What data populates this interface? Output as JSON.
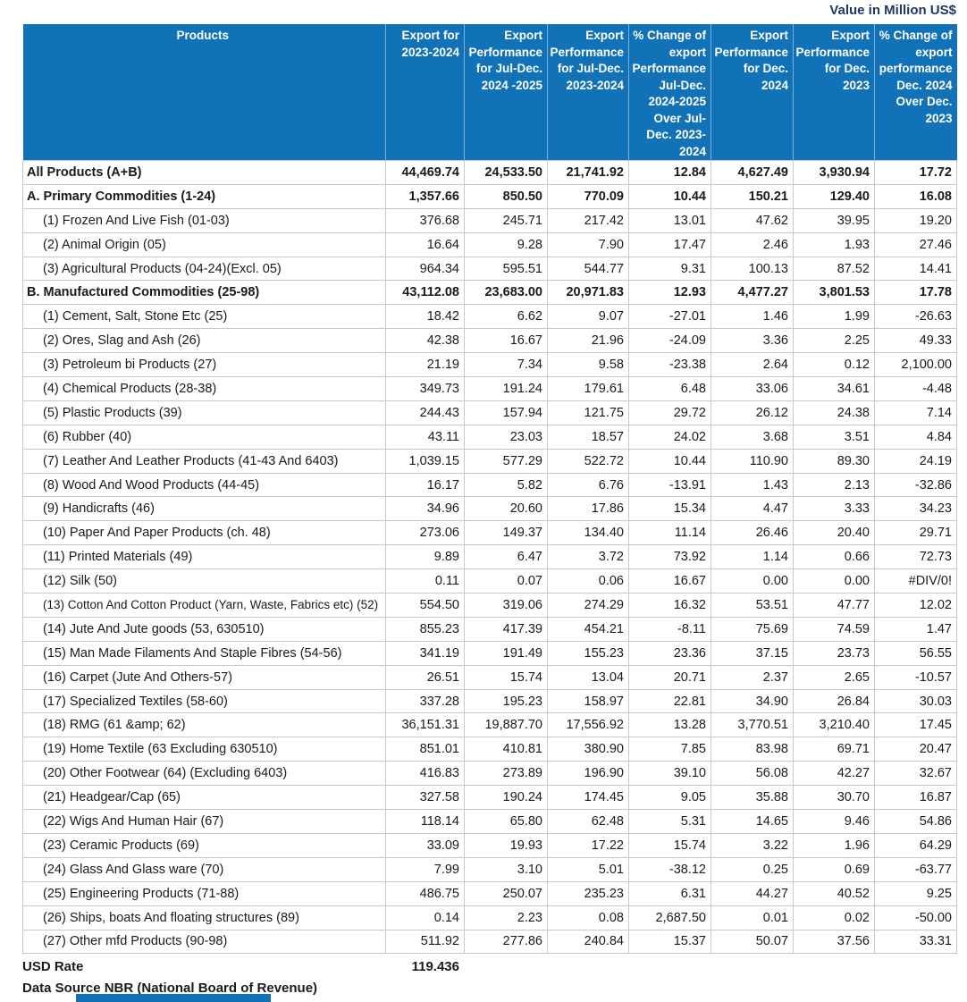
{
  "title": "Value in Million US$",
  "colors": {
    "header_bg": "#1272B8",
    "header_text": "#FFFFFF",
    "title_text": "#1F3864",
    "grid_line": "#C9C9C9",
    "header_divider": "#7FAFD4"
  },
  "chart_data": {
    "type": "table",
    "title": "Value in Million US$",
    "columns": [
      "Products",
      "Export for 2023-2024",
      "Export Performance for Jul-Dec. 2024 -2025",
      "Export Performance for Jul-Dec. 2023-2024",
      "% Change of export Performance Jul-Dec. 2024-2025 Over Jul-Dec. 2023-2024",
      "Export Performance for Dec. 2024",
      "Export Performance for Dec. 2023",
      "% Change of export performance Dec. 2024 Over Dec. 2023"
    ],
    "rows": [
      {
        "product": "All Products (A+B)",
        "values": [
          "44,469.74",
          "24,533.50",
          "21,741.92",
          "12.84",
          "4,627.49",
          "3,930.94",
          "17.72"
        ],
        "bold": true,
        "indent": false
      },
      {
        "product": "A. Primary Commodities (1-24)",
        "values": [
          "1,357.66",
          "850.50",
          "770.09",
          "10.44",
          "150.21",
          "129.40",
          "16.08"
        ],
        "bold": true,
        "indent": false
      },
      {
        "product": "(1) Frozen And Live Fish (01-03)",
        "values": [
          "376.68",
          "245.71",
          "217.42",
          "13.01",
          "47.62",
          "39.95",
          "19.20"
        ],
        "bold": false,
        "indent": true
      },
      {
        "product": "(2) Animal Origin (05)",
        "values": [
          "16.64",
          "9.28",
          "7.90",
          "17.47",
          "2.46",
          "1.93",
          "27.46"
        ],
        "bold": false,
        "indent": true
      },
      {
        "product": "(3) Agricultural Products (04-24)(Excl. 05)",
        "values": [
          "964.34",
          "595.51",
          "544.77",
          "9.31",
          "100.13",
          "87.52",
          "14.41"
        ],
        "bold": false,
        "indent": true
      },
      {
        "product": "B. Manufactured Commodities (25-98)",
        "values": [
          "43,112.08",
          "23,683.00",
          "20,971.83",
          "12.93",
          "4,477.27",
          "3,801.53",
          "17.78"
        ],
        "bold": true,
        "indent": false
      },
      {
        "product": "(1) Cement, Salt, Stone Etc (25)",
        "values": [
          "18.42",
          "6.62",
          "9.07",
          "-27.01",
          "1.46",
          "1.99",
          "-26.63"
        ],
        "bold": false,
        "indent": true
      },
      {
        "product": "(2) Ores, Slag and Ash (26)",
        "values": [
          "42.38",
          "16.67",
          "21.96",
          "-24.09",
          "3.36",
          "2.25",
          "49.33"
        ],
        "bold": false,
        "indent": true
      },
      {
        "product": "(3) Petroleum bi Products (27)",
        "values": [
          "21.19",
          "7.34",
          "9.58",
          "-23.38",
          "2.64",
          "0.12",
          "2,100.00"
        ],
        "bold": false,
        "indent": true
      },
      {
        "product": "(4) Chemical Products (28-38)",
        "values": [
          "349.73",
          "191.24",
          "179.61",
          "6.48",
          "33.06",
          "34.61",
          "-4.48"
        ],
        "bold": false,
        "indent": true
      },
      {
        "product": "(5) Plastic Products (39)",
        "values": [
          "244.43",
          "157.94",
          "121.75",
          "29.72",
          "26.12",
          "24.38",
          "7.14"
        ],
        "bold": false,
        "indent": true
      },
      {
        "product": "(6) Rubber (40)",
        "values": [
          "43.11",
          "23.03",
          "18.57",
          "24.02",
          "3.68",
          "3.51",
          "4.84"
        ],
        "bold": false,
        "indent": true
      },
      {
        "product": "(7) Leather And Leather Products (41-43 And 6403)",
        "values": [
          "1,039.15",
          "577.29",
          "522.72",
          "10.44",
          "110.90",
          "89.30",
          "24.19"
        ],
        "bold": false,
        "indent": true
      },
      {
        "product": "(8) Wood And Wood Products (44-45)",
        "values": [
          "16.17",
          "5.82",
          "6.76",
          "-13.91",
          "1.43",
          "2.13",
          "-32.86"
        ],
        "bold": false,
        "indent": true
      },
      {
        "product": "(9) Handicrafts (46)",
        "values": [
          "34.96",
          "20.60",
          "17.86",
          "15.34",
          "4.47",
          "3.33",
          "34.23"
        ],
        "bold": false,
        "indent": true
      },
      {
        "product": "(10) Paper And Paper Products (ch. 48)",
        "values": [
          "273.06",
          "149.37",
          "134.40",
          "11.14",
          "26.46",
          "20.40",
          "29.71"
        ],
        "bold": false,
        "indent": true
      },
      {
        "product": "(11) Printed Materials (49)",
        "values": [
          "9.89",
          "6.47",
          "3.72",
          "73.92",
          "1.14",
          "0.66",
          "72.73"
        ],
        "bold": false,
        "indent": true
      },
      {
        "product": "(12) Silk (50)",
        "values": [
          "0.11",
          "0.07",
          "0.06",
          "16.67",
          "0.00",
          "0.00",
          "#DIV/0!"
        ],
        "bold": false,
        "indent": true
      },
      {
        "product": "(13) Cotton And Cotton Product (Yarn, Waste, Fabrics etc) (52)",
        "values": [
          "554.50",
          "319.06",
          "274.29",
          "16.32",
          "53.51",
          "47.77",
          "12.02"
        ],
        "bold": false,
        "indent": true
      },
      {
        "product": "(14) Jute And Jute goods (53, 630510)",
        "values": [
          "855.23",
          "417.39",
          "454.21",
          "-8.11",
          "75.69",
          "74.59",
          "1.47"
        ],
        "bold": false,
        "indent": true
      },
      {
        "product": "(15) Man Made Filaments And Staple Fibres (54-56)",
        "values": [
          "341.19",
          "191.49",
          "155.23",
          "23.36",
          "37.15",
          "23.73",
          "56.55"
        ],
        "bold": false,
        "indent": true
      },
      {
        "product": "(16) Carpet (Jute And Others-57)",
        "values": [
          "26.51",
          "15.74",
          "13.04",
          "20.71",
          "2.37",
          "2.65",
          "-10.57"
        ],
        "bold": false,
        "indent": true
      },
      {
        "product": "(17) Specialized Textiles (58-60)",
        "values": [
          "337.28",
          "195.23",
          "158.97",
          "22.81",
          "34.90",
          "26.84",
          "30.03"
        ],
        "bold": false,
        "indent": true
      },
      {
        "product": "(18) RMG (61 &amp; 62)",
        "values": [
          "36,151.31",
          "19,887.70",
          "17,556.92",
          "13.28",
          "3,770.51",
          "3,210.40",
          "17.45"
        ],
        "bold": false,
        "indent": true
      },
      {
        "product": "(19) Home Textile (63 Excluding 630510)",
        "values": [
          "851.01",
          "410.81",
          "380.90",
          "7.85",
          "83.98",
          "69.71",
          "20.47"
        ],
        "bold": false,
        "indent": true
      },
      {
        "product": "(20) Other Footwear (64) (Excluding 6403)",
        "values": [
          "416.83",
          "273.89",
          "196.90",
          "39.10",
          "56.08",
          "42.27",
          "32.67"
        ],
        "bold": false,
        "indent": true
      },
      {
        "product": "(21) Headgear/Cap (65)",
        "values": [
          "327.58",
          "190.24",
          "174.45",
          "9.05",
          "35.88",
          "30.70",
          "16.87"
        ],
        "bold": false,
        "indent": true
      },
      {
        "product": "(22) Wigs And Human Hair (67)",
        "values": [
          "118.14",
          "65.80",
          "62.48",
          "5.31",
          "14.65",
          "9.46",
          "54.86"
        ],
        "bold": false,
        "indent": true
      },
      {
        "product": "(23) Ceramic Products (69)",
        "values": [
          "33.09",
          "19.93",
          "17.22",
          "15.74",
          "3.22",
          "1.96",
          "64.29"
        ],
        "bold": false,
        "indent": true
      },
      {
        "product": "(24) Glass And Glass ware (70)",
        "values": [
          "7.99",
          "3.10",
          "5.01",
          "-38.12",
          "0.25",
          "0.69",
          "-63.77"
        ],
        "bold": false,
        "indent": true
      },
      {
        "product": "(25) Engineering Products (71-88)",
        "values": [
          "486.75",
          "250.07",
          "235.23",
          "6.31",
          "44.27",
          "40.52",
          "9.25"
        ],
        "bold": false,
        "indent": true
      },
      {
        "product": "(26) Ships, boats And floating structures (89)",
        "values": [
          "0.14",
          "2.23",
          "0.08",
          "2,687.50",
          "0.01",
          "0.02",
          "-50.00"
        ],
        "bold": false,
        "indent": true
      },
      {
        "product": "(27) Other mfd Products (90-98)",
        "values": [
          "511.92",
          "277.86",
          "240.84",
          "15.37",
          "50.07",
          "37.56",
          "33.31"
        ],
        "bold": false,
        "indent": true
      }
    ],
    "footer": {
      "usd_rate_label": "USD Rate",
      "usd_rate_value": "119.436",
      "data_source": "Data Source NBR (National Board of Revenue)"
    }
  }
}
